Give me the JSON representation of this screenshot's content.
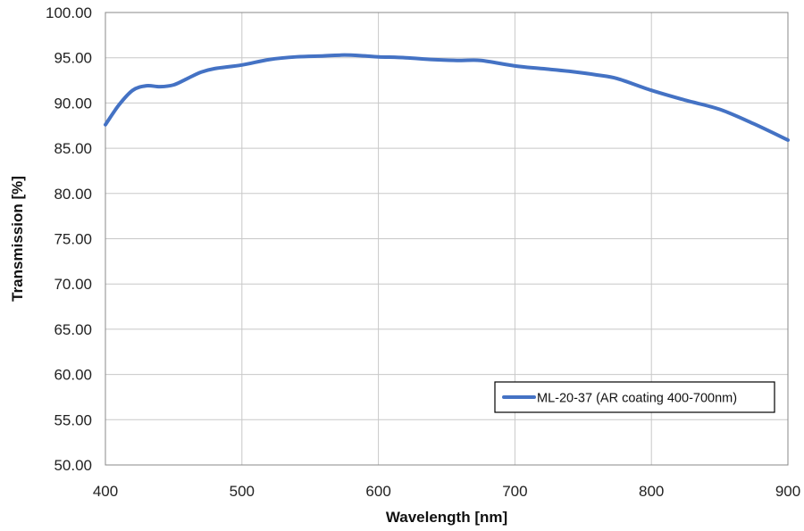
{
  "chart_data": {
    "type": "line",
    "xlabel": "Wavelength [nm]",
    "ylabel": "Transmission [%]",
    "xlim": [
      400,
      900
    ],
    "ylim": [
      50,
      100
    ],
    "x_ticks": [
      "400",
      "500",
      "600",
      "700",
      "800",
      "900"
    ],
    "y_ticks": [
      "50.00",
      "55.00",
      "60.00",
      "65.00",
      "70.00",
      "75.00",
      "80.00",
      "85.00",
      "90.00",
      "95.00",
      "100.00"
    ],
    "grid": true,
    "legend_position": "bottom-right",
    "series": [
      {
        "name": "ML-20-37 (AR coating 400-700nm)",
        "color": "#4472c4",
        "x": [
          400,
          410,
          420,
          430,
          440,
          450,
          460,
          470,
          480,
          500,
          520,
          540,
          560,
          575,
          590,
          600,
          620,
          640,
          660,
          675,
          700,
          720,
          740,
          760,
          775,
          800,
          825,
          850,
          875,
          900
        ],
        "y": [
          87.6,
          89.8,
          91.4,
          91.9,
          91.8,
          92.0,
          92.7,
          93.4,
          93.8,
          94.2,
          94.8,
          95.1,
          95.2,
          95.3,
          95.2,
          95.1,
          95.0,
          94.8,
          94.7,
          94.7,
          94.1,
          93.8,
          93.5,
          93.1,
          92.7,
          91.4,
          90.3,
          89.3,
          87.7,
          85.9
        ]
      }
    ]
  }
}
